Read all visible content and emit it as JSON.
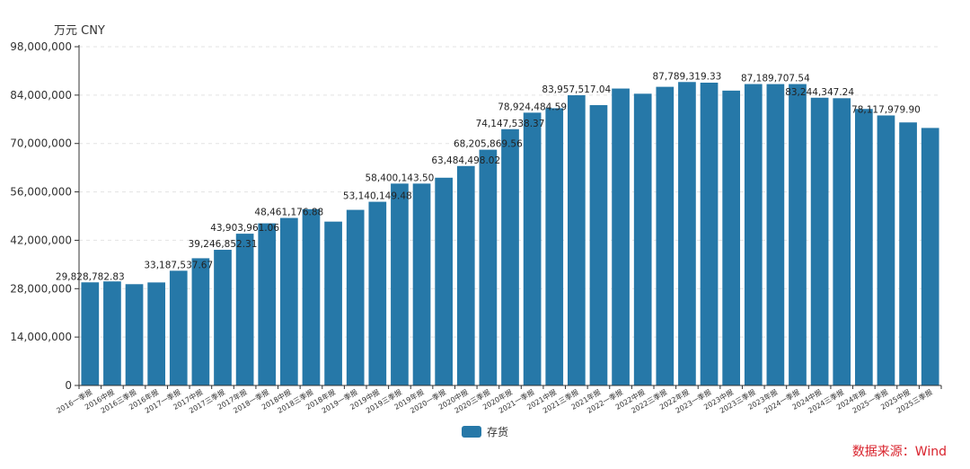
{
  "colors": {
    "bar": "#2678a8",
    "axis": "#333333",
    "grid": "#e3e3e3",
    "source": "#d9232d"
  },
  "chart_data": {
    "type": "bar",
    "unit_label": "万元  CNY",
    "ylim": [
      0,
      98000000
    ],
    "yticks": [
      "0",
      "14,000,000",
      "28,000,000",
      "42,000,000",
      "56,000,000",
      "70,000,000",
      "84,000,000",
      "98,000,000"
    ],
    "ytick_values": [
      0,
      14000000,
      28000000,
      42000000,
      56000000,
      70000000,
      84000000,
      98000000
    ],
    "grid": true,
    "legend_position": "bottom-center",
    "categories": [
      "2016一季报",
      "2016中报",
      "2016三季报",
      "2016年报",
      "2017一季报",
      "2017中报",
      "2017三季报",
      "2017年报",
      "2018一季报",
      "2018中报",
      "2018三季报",
      "2018年报",
      "2019一季报",
      "2019中报",
      "2019三季报",
      "2019年报",
      "2020一季报",
      "2020中报",
      "2020三季报",
      "2020年报",
      "2021一季报",
      "2021中报",
      "2021三季报",
      "2021年报",
      "2022一季报",
      "2022中报",
      "2022三季报",
      "2022年报",
      "2023一季报",
      "2023中报",
      "2023三季报",
      "2023年报",
      "2024一季报",
      "2024中报",
      "2024三季报",
      "2024年报",
      "2025一季报",
      "2025中报",
      "2025三季报"
    ],
    "series": [
      {
        "name": "存货",
        "values": [
          29828782.83,
          30100000,
          29300000,
          29800000,
          33187537.67,
          36800000,
          39246852.31,
          43903961.06,
          46900000,
          48461176.88,
          51000000,
          47400000,
          50800000,
          53140149.48,
          58400143.5,
          58400000,
          60100000,
          63484498.02,
          68205869.56,
          74147538.37,
          78924484.59,
          80200000,
          83957517.04,
          81100000,
          85900000,
          84400000,
          86400000,
          87789319.33,
          87600000,
          85300000,
          87200000,
          87189707.54,
          87200000,
          83244347.24,
          83100000,
          80000000,
          78117979.9,
          76100000,
          74500000
        ],
        "data_labels": {
          "0": "29,828,782.83",
          "4": "33,187,537.67",
          "6": "39,246,852.31",
          "7": "43,903,961.06",
          "9": "48,461,176.88",
          "13": "53,140,149.48",
          "14": "58,400,143.50",
          "17": "63,484,498.02",
          "18": "68,205,869.56",
          "19": "74,147,538.37",
          "20": "78,924,484.59",
          "22": "83,957,517.04",
          "27": "87,789,319.33",
          "31": "87,189,707.54",
          "33": "83,244,347.24",
          "36": "78,117,979.90"
        }
      }
    ]
  },
  "source_text": "数据来源：Wind"
}
